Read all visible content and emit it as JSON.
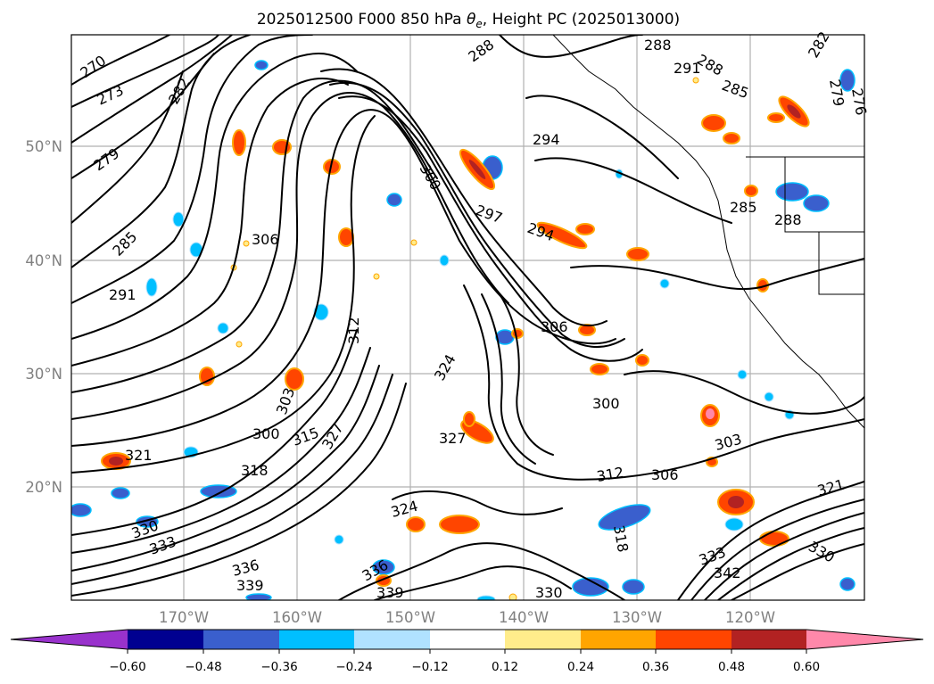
{
  "title": {
    "prefix": "2025012500 F000 850 hPa ",
    "symbol": "θ",
    "subscript": "e",
    "suffix": ", Height PC (2025013000)"
  },
  "map": {
    "latitude_labels": [
      "50°N",
      "40°N",
      "30°N",
      "20°N"
    ],
    "longitude_labels": [
      "170°W",
      "160°W",
      "150°W",
      "140°W",
      "130°W",
      "120°W"
    ],
    "contour_labels": [
      "270",
      "273",
      "279",
      "285",
      "291",
      "282",
      "288",
      "294",
      "300",
      "306",
      "312",
      "297",
      "294",
      "288",
      "291",
      "288",
      "285",
      "285",
      "279",
      "276",
      "282",
      "288",
      "306",
      "300",
      "303",
      "315",
      "318",
      "321",
      "324",
      "327",
      "312",
      "306",
      "303",
      "300",
      "321",
      "330",
      "336",
      "339",
      "339",
      "342",
      "333",
      "330",
      "324",
      "318",
      "327",
      "330",
      "333",
      "336"
    ]
  },
  "colorbar": {
    "tick_labels": [
      "−0.60",
      "−0.48",
      "−0.36",
      "−0.24",
      "−0.12",
      "0.12",
      "0.24",
      "0.36",
      "0.48",
      "0.60"
    ],
    "colors": [
      "#9932cc",
      "#000090",
      "#3a5fcd",
      "#00bfff",
      "#b0e2ff",
      "#ffffff",
      "#ffec8b",
      "#ffa500",
      "#ff4500",
      "#b22222",
      "#ff88aa"
    ]
  },
  "colors": {
    "blue_anomaly": "#3a5fcd",
    "light_blue": "#00bfff",
    "red_anomaly": "#ff4500",
    "orange": "#ffa500",
    "yellow": "#ffec8b",
    "dark_red": "#b22222",
    "pink": "#ff88aa"
  }
}
